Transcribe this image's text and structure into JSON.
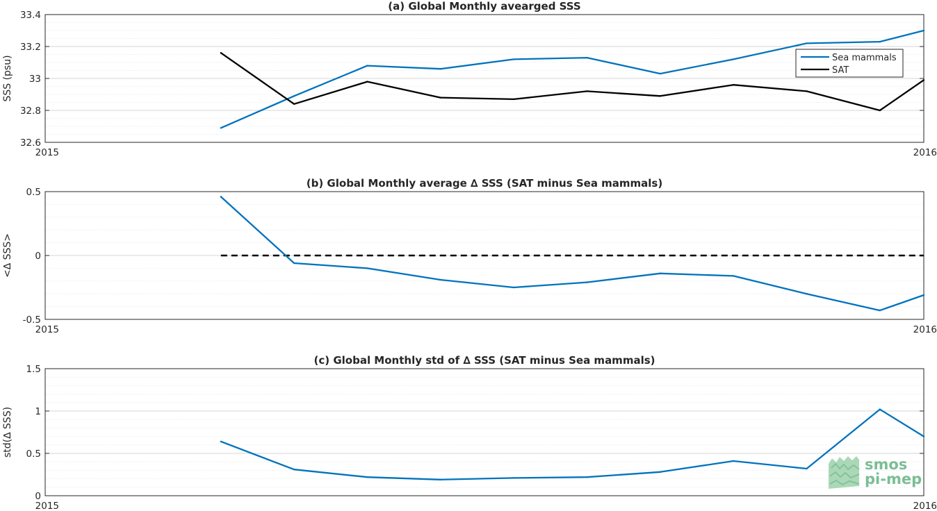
{
  "chart_data": [
    {
      "type": "line",
      "title": "(a) Global Monthly avearged SSS",
      "ylabel": "SSS (psu)",
      "xlabel": "",
      "x_tick_labels": [
        "2015",
        "2016"
      ],
      "xlim": [
        0,
        12
      ],
      "ylim": [
        32.6,
        33.4
      ],
      "y_ticks": [
        32.6,
        32.8,
        33,
        33.2,
        33.4
      ],
      "y_tick_labels": [
        "32.6",
        "32.8",
        "33",
        "33.2",
        "33.4"
      ],
      "grid": true,
      "legend": "top-right",
      "x": [
        2.4,
        3.4,
        4.4,
        5.4,
        6.4,
        7.4,
        8.4,
        9.4,
        10.4,
        11.4,
        12.0
      ],
      "series": [
        {
          "name": "Sea mammals",
          "color": "#0072bd",
          "values": [
            32.69,
            32.89,
            33.08,
            33.06,
            33.12,
            33.13,
            33.03,
            33.12,
            33.22,
            33.23,
            33.3
          ]
        },
        {
          "name": "SAT",
          "color": "#000000",
          "values": [
            33.16,
            32.84,
            32.98,
            32.88,
            32.87,
            32.92,
            32.89,
            32.96,
            32.92,
            32.8,
            32.99
          ]
        }
      ]
    },
    {
      "type": "line",
      "title": "(b) Global Monthly average ∆ SSS (SAT minus Sea mammals)",
      "ylabel": "<∆ SSS>",
      "xlabel": "",
      "x_tick_labels": [
        "2015",
        "2016"
      ],
      "xlim": [
        0,
        12
      ],
      "ylim": [
        -0.5,
        0.5
      ],
      "y_ticks": [
        -0.5,
        0,
        0.5
      ],
      "y_tick_labels": [
        "-0.5",
        "0",
        "0.5"
      ],
      "grid": true,
      "reference_line": {
        "y": 0,
        "style": "dashed",
        "color": "#000000"
      },
      "x": [
        2.4,
        3.4,
        4.4,
        5.4,
        6.4,
        7.4,
        8.4,
        9.4,
        10.4,
        11.4,
        12.0
      ],
      "series": [
        {
          "color": "#0072bd",
          "values": [
            0.46,
            -0.06,
            -0.1,
            -0.19,
            -0.25,
            -0.21,
            -0.14,
            -0.16,
            -0.3,
            -0.43,
            -0.31
          ]
        }
      ]
    },
    {
      "type": "line",
      "title": "(c) Global Monthly std of ∆ SSS (SAT minus Sea mammals)",
      "ylabel": "std(∆ SSS)",
      "xlabel": "",
      "x_tick_labels": [
        "2015",
        "2016"
      ],
      "xlim": [
        0,
        12
      ],
      "ylim": [
        0,
        1.5
      ],
      "y_ticks": [
        0,
        0.5,
        1,
        1.5
      ],
      "y_tick_labels": [
        "0",
        "0.5",
        "1",
        "1.5"
      ],
      "grid": true,
      "x": [
        2.4,
        3.4,
        4.4,
        5.4,
        6.4,
        7.4,
        8.4,
        9.4,
        10.4,
        11.4,
        12.0
      ],
      "series": [
        {
          "color": "#0072bd",
          "values": [
            0.64,
            0.31,
            0.22,
            0.19,
            0.21,
            0.22,
            0.28,
            0.41,
            0.32,
            1.02,
            0.7
          ]
        }
      ]
    }
  ],
  "logo": {
    "line1": "smos",
    "line2": "pi-mep",
    "color": "#5aae7a"
  }
}
